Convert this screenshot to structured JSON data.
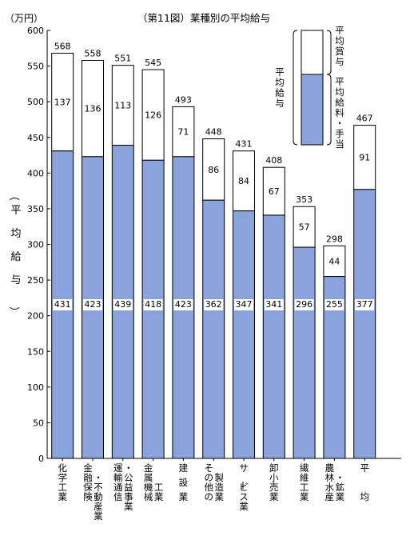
{
  "chart_data": {
    "type": "bar",
    "stacked": true,
    "title": "（第11図）業種別の平均給与",
    "unit_label": "（万円）",
    "ylabel": "（平均給与）",
    "ylim": [
      0,
      600
    ],
    "yticks": [
      0,
      50,
      100,
      150,
      200,
      250,
      300,
      350,
      400,
      450,
      500,
      550,
      600
    ],
    "grid": false,
    "legend_position": "top-right",
    "colors": {
      "salary": "#8BA3DC",
      "bonus": "#FFFFFF",
      "outline": "#000000"
    },
    "categories": [
      [
        "化",
        "学",
        "工",
        "業"
      ],
      [
        "金",
        "融",
        "保",
        "険",
        "・",
        "不",
        "動",
        "産",
        "業"
      ],
      [
        "運",
        "輸",
        "通",
        "信",
        "・",
        "公",
        "益",
        "事",
        "業"
      ],
      [
        "金",
        "属",
        "機",
        "械",
        "工",
        "業"
      ],
      [
        "建",
        "設",
        "業"
      ],
      [
        "そ",
        "の",
        "他",
        "の",
        "製",
        "造",
        "業"
      ],
      [
        "サ",
        "ー",
        "ビ",
        "ス",
        "業"
      ],
      [
        "卸",
        "小",
        "売",
        "業"
      ],
      [
        "繊",
        "維",
        "工",
        "業"
      ],
      [
        "農",
        "林",
        "水",
        "産",
        "・",
        "鉱",
        "業"
      ],
      [
        "平",
        "均"
      ]
    ],
    "series": [
      {
        "name": "平均給料・手当",
        "values": [
          431,
          423,
          439,
          418,
          423,
          362,
          347,
          341,
          296,
          255,
          377
        ]
      },
      {
        "name": "平均賞与",
        "values": [
          137,
          136,
          113,
          126,
          71,
          86,
          84,
          67,
          57,
          44,
          91
        ]
      }
    ],
    "totals": [
      568,
      558,
      551,
      545,
      493,
      448,
      431,
      408,
      353,
      298,
      467
    ],
    "legend": {
      "box_label": "平均給与",
      "entries": [
        "平均賞与",
        "平均給料・手当"
      ]
    }
  }
}
